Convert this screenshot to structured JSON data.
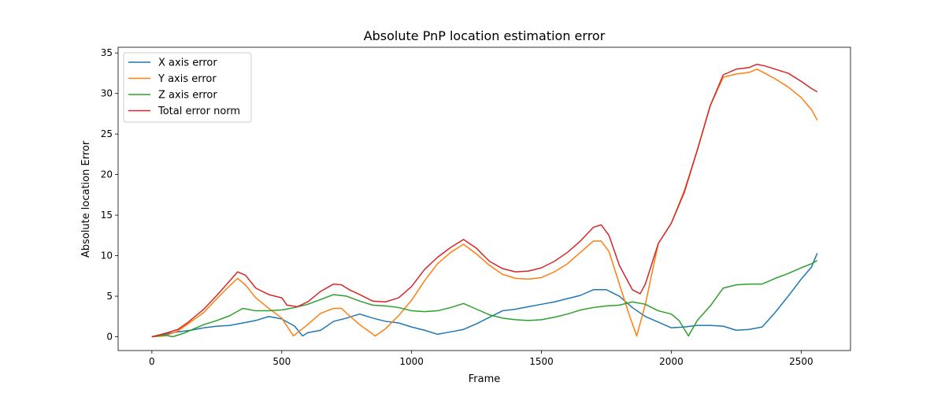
{
  "chart_data": {
    "type": "line",
    "title": "Absolute PnP location estimation error",
    "xlabel": "Frame",
    "ylabel": "Absolute location Error",
    "xlim": [
      -130,
      2690
    ],
    "ylim": [
      -1.7,
      35.7
    ],
    "xticks": [
      0,
      500,
      1000,
      1500,
      2000,
      2500
    ],
    "yticks": [
      0,
      5,
      10,
      15,
      20,
      25,
      30,
      35
    ],
    "grid": false,
    "legend_position": "top-left",
    "series": [
      {
        "name": "X axis error",
        "color": "#1f77b4",
        "points": [
          [
            0,
            0
          ],
          [
            50,
            0.3
          ],
          [
            100,
            0.6
          ],
          [
            150,
            0.8
          ],
          [
            200,
            1.1
          ],
          [
            250,
            1.3
          ],
          [
            300,
            1.4
          ],
          [
            350,
            1.7
          ],
          [
            400,
            2.0
          ],
          [
            450,
            2.5
          ],
          [
            500,
            2.2
          ],
          [
            550,
            1.3
          ],
          [
            580,
            0.1
          ],
          [
            600,
            0.5
          ],
          [
            650,
            0.8
          ],
          [
            700,
            1.9
          ],
          [
            750,
            2.3
          ],
          [
            800,
            2.8
          ],
          [
            850,
            2.3
          ],
          [
            900,
            1.9
          ],
          [
            950,
            1.7
          ],
          [
            1000,
            1.2
          ],
          [
            1050,
            0.8
          ],
          [
            1100,
            0.3
          ],
          [
            1150,
            0.6
          ],
          [
            1200,
            0.9
          ],
          [
            1250,
            1.6
          ],
          [
            1300,
            2.4
          ],
          [
            1350,
            3.2
          ],
          [
            1400,
            3.4
          ],
          [
            1450,
            3.7
          ],
          [
            1500,
            4.0
          ],
          [
            1550,
            4.3
          ],
          [
            1600,
            4.7
          ],
          [
            1650,
            5.1
          ],
          [
            1700,
            5.8
          ],
          [
            1750,
            5.8
          ],
          [
            1800,
            5.0
          ],
          [
            1850,
            3.6
          ],
          [
            1900,
            2.5
          ],
          [
            1950,
            1.8
          ],
          [
            2000,
            1.1
          ],
          [
            2050,
            1.2
          ],
          [
            2100,
            1.4
          ],
          [
            2150,
            1.4
          ],
          [
            2200,
            1.3
          ],
          [
            2250,
            0.8
          ],
          [
            2300,
            0.9
          ],
          [
            2350,
            1.2
          ],
          [
            2400,
            3.0
          ],
          [
            2450,
            5.0
          ],
          [
            2500,
            7.1
          ],
          [
            2540,
            8.6
          ],
          [
            2562,
            10.3
          ]
        ]
      },
      {
        "name": "Y axis error",
        "color": "#ff7f0e",
        "points": [
          [
            0,
            0
          ],
          [
            50,
            0.1
          ],
          [
            100,
            0.7
          ],
          [
            140,
            1.6
          ],
          [
            200,
            3.0
          ],
          [
            250,
            4.7
          ],
          [
            300,
            6.3
          ],
          [
            330,
            7.2
          ],
          [
            360,
            6.4
          ],
          [
            400,
            4.8
          ],
          [
            450,
            3.5
          ],
          [
            500,
            2.3
          ],
          [
            545,
            0.1
          ],
          [
            600,
            1.5
          ],
          [
            650,
            2.9
          ],
          [
            700,
            3.5
          ],
          [
            730,
            3.5
          ],
          [
            760,
            2.6
          ],
          [
            800,
            1.5
          ],
          [
            860,
            0.1
          ],
          [
            900,
            1.0
          ],
          [
            950,
            2.6
          ],
          [
            1000,
            4.5
          ],
          [
            1050,
            6.9
          ],
          [
            1100,
            9.0
          ],
          [
            1150,
            10.4
          ],
          [
            1200,
            11.4
          ],
          [
            1250,
            10.2
          ],
          [
            1300,
            8.8
          ],
          [
            1350,
            7.7
          ],
          [
            1400,
            7.2
          ],
          [
            1450,
            7.1
          ],
          [
            1500,
            7.3
          ],
          [
            1550,
            8.0
          ],
          [
            1600,
            9.0
          ],
          [
            1650,
            10.4
          ],
          [
            1700,
            11.8
          ],
          [
            1730,
            11.8
          ],
          [
            1760,
            10.5
          ],
          [
            1800,
            6.5
          ],
          [
            1840,
            2.5
          ],
          [
            1867,
            0.1
          ],
          [
            1900,
            4.0
          ],
          [
            1950,
            11.5
          ],
          [
            2000,
            14.0
          ],
          [
            2050,
            18.0
          ],
          [
            2100,
            23.0
          ],
          [
            2150,
            28.5
          ],
          [
            2200,
            32.0
          ],
          [
            2250,
            32.4
          ],
          [
            2300,
            32.6
          ],
          [
            2330,
            33.0
          ],
          [
            2360,
            32.5
          ],
          [
            2400,
            31.8
          ],
          [
            2450,
            30.8
          ],
          [
            2500,
            29.5
          ],
          [
            2540,
            28.0
          ],
          [
            2562,
            26.7
          ]
        ]
      },
      {
        "name": "Z axis error",
        "color": "#2ca02c",
        "points": [
          [
            0,
            0
          ],
          [
            50,
            0.2
          ],
          [
            80,
            0.0
          ],
          [
            120,
            0.4
          ],
          [
            200,
            1.5
          ],
          [
            250,
            2.0
          ],
          [
            300,
            2.6
          ],
          [
            350,
            3.5
          ],
          [
            400,
            3.2
          ],
          [
            450,
            3.2
          ],
          [
            500,
            3.3
          ],
          [
            550,
            3.6
          ],
          [
            600,
            4.0
          ],
          [
            650,
            4.6
          ],
          [
            700,
            5.2
          ],
          [
            750,
            5.0
          ],
          [
            800,
            4.4
          ],
          [
            850,
            3.9
          ],
          [
            900,
            3.8
          ],
          [
            950,
            3.6
          ],
          [
            1000,
            3.2
          ],
          [
            1050,
            3.1
          ],
          [
            1100,
            3.2
          ],
          [
            1150,
            3.6
          ],
          [
            1200,
            4.1
          ],
          [
            1250,
            3.4
          ],
          [
            1300,
            2.7
          ],
          [
            1350,
            2.3
          ],
          [
            1400,
            2.1
          ],
          [
            1450,
            2.0
          ],
          [
            1500,
            2.1
          ],
          [
            1550,
            2.4
          ],
          [
            1600,
            2.8
          ],
          [
            1650,
            3.3
          ],
          [
            1700,
            3.6
          ],
          [
            1750,
            3.8
          ],
          [
            1800,
            3.9
          ],
          [
            1850,
            4.3
          ],
          [
            1900,
            4.0
          ],
          [
            1950,
            3.2
          ],
          [
            2000,
            2.8
          ],
          [
            2030,
            2.0
          ],
          [
            2066,
            0.1
          ],
          [
            2100,
            2.0
          ],
          [
            2150,
            3.8
          ],
          [
            2200,
            6.0
          ],
          [
            2250,
            6.4
          ],
          [
            2300,
            6.5
          ],
          [
            2350,
            6.5
          ],
          [
            2400,
            7.2
          ],
          [
            2450,
            7.8
          ],
          [
            2500,
            8.5
          ],
          [
            2540,
            9.0
          ],
          [
            2562,
            9.4
          ]
        ]
      },
      {
        "name": "Total error norm",
        "color": "#d62728",
        "points": [
          [
            0,
            0
          ],
          [
            50,
            0.4
          ],
          [
            100,
            0.9
          ],
          [
            140,
            1.8
          ],
          [
            200,
            3.4
          ],
          [
            250,
            5.1
          ],
          [
            300,
            6.9
          ],
          [
            330,
            8.0
          ],
          [
            360,
            7.6
          ],
          [
            400,
            6.0
          ],
          [
            450,
            5.2
          ],
          [
            500,
            4.8
          ],
          [
            520,
            3.9
          ],
          [
            560,
            3.7
          ],
          [
            600,
            4.3
          ],
          [
            650,
            5.6
          ],
          [
            700,
            6.5
          ],
          [
            730,
            6.4
          ],
          [
            760,
            5.8
          ],
          [
            800,
            5.2
          ],
          [
            850,
            4.4
          ],
          [
            900,
            4.3
          ],
          [
            950,
            4.8
          ],
          [
            1000,
            6.2
          ],
          [
            1050,
            8.3
          ],
          [
            1100,
            9.8
          ],
          [
            1150,
            11.0
          ],
          [
            1200,
            12.0
          ],
          [
            1250,
            10.9
          ],
          [
            1300,
            9.3
          ],
          [
            1350,
            8.4
          ],
          [
            1400,
            8.0
          ],
          [
            1450,
            8.1
          ],
          [
            1500,
            8.5
          ],
          [
            1550,
            9.3
          ],
          [
            1600,
            10.4
          ],
          [
            1650,
            11.8
          ],
          [
            1700,
            13.5
          ],
          [
            1730,
            13.8
          ],
          [
            1760,
            12.5
          ],
          [
            1800,
            8.8
          ],
          [
            1850,
            5.8
          ],
          [
            1880,
            5.3
          ],
          [
            1900,
            6.5
          ],
          [
            1950,
            11.5
          ],
          [
            2000,
            14.0
          ],
          [
            2050,
            17.8
          ],
          [
            2100,
            23.0
          ],
          [
            2150,
            28.5
          ],
          [
            2200,
            32.3
          ],
          [
            2250,
            33.0
          ],
          [
            2300,
            33.2
          ],
          [
            2330,
            33.6
          ],
          [
            2360,
            33.4
          ],
          [
            2400,
            33.0
          ],
          [
            2450,
            32.5
          ],
          [
            2500,
            31.5
          ],
          [
            2540,
            30.6
          ],
          [
            2562,
            30.2
          ]
        ]
      }
    ]
  }
}
